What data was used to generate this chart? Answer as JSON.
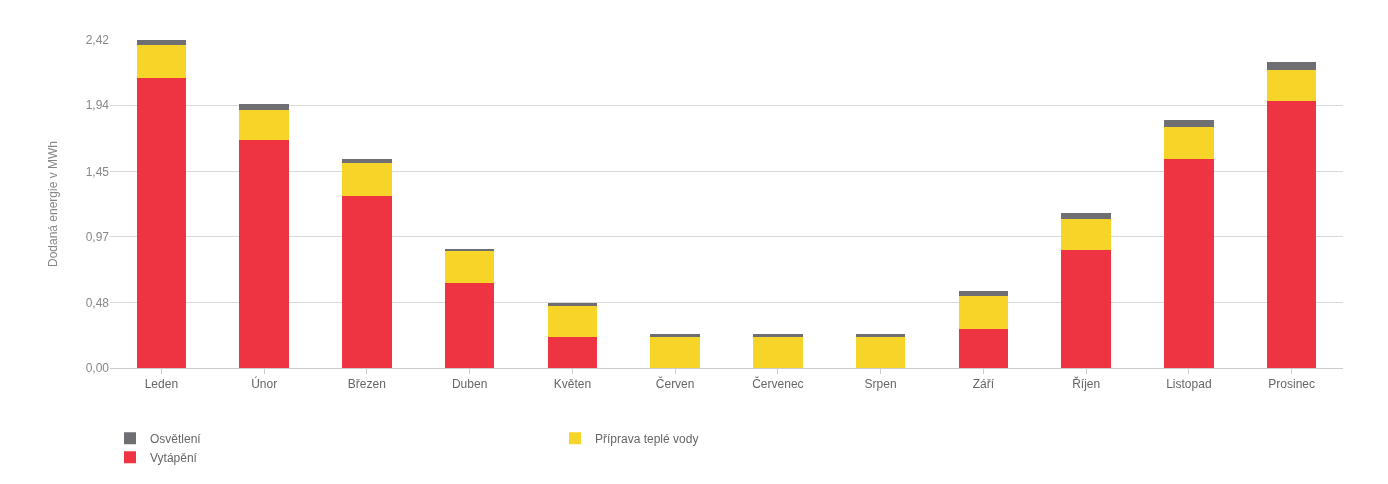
{
  "chart_data": {
    "type": "bar",
    "stacked": true,
    "ylabel": "Dodaná energie v MWh",
    "categories": [
      "Leden",
      "Únor",
      "Březen",
      "Duben",
      "Květen",
      "Červen",
      "Červenec",
      "Srpen",
      "Září",
      "Říjen",
      "Listopad",
      "Prosinec"
    ],
    "series": [
      {
        "name": "Vytápění",
        "color": "#ee3342",
        "values": [
          2.14,
          1.68,
          1.27,
          0.63,
          0.23,
          0,
          0,
          0,
          0.29,
          0.87,
          1.54,
          1.97
        ]
      },
      {
        "name": "Příprava teplé vody",
        "color": "#f7d528",
        "values": [
          0.24,
          0.22,
          0.24,
          0.23,
          0.23,
          0.23,
          0.23,
          0.23,
          0.24,
          0.23,
          0.24,
          0.23
        ]
      },
      {
        "name": "Osvětlení",
        "color": "#6f6f73",
        "values": [
          0.04,
          0.05,
          0.03,
          0.02,
          0.02,
          0.02,
          0.02,
          0.02,
          0.04,
          0.04,
          0.05,
          0.06
        ]
      }
    ],
    "ylim": [
      0,
      2.42
    ],
    "yticks": [
      {
        "value": 0,
        "label": "0,00"
      },
      {
        "value": 0.48,
        "label": "0,48"
      },
      {
        "value": 0.97,
        "label": "0,97"
      },
      {
        "value": 1.45,
        "label": "1,45"
      },
      {
        "value": 1.94,
        "label": "1,94"
      },
      {
        "value": 2.42,
        "label": "2,42"
      }
    ],
    "grid": "y",
    "legend": "bottom"
  }
}
